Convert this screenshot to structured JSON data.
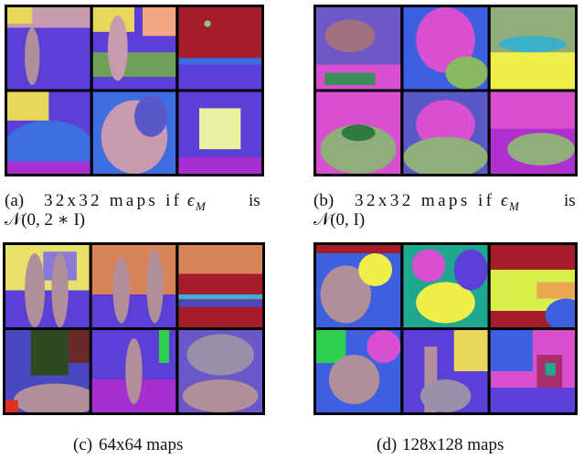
{
  "figures": [
    {
      "label": "(a)",
      "text": "32x32 maps if",
      "symbol": "ϵ",
      "subscript": "M",
      "suffix": "is",
      "distribution": "𝒩(0, 2 ∗ I)"
    },
    {
      "label": "(b)",
      "text": "32x32 maps if",
      "symbol": "ϵ",
      "subscript": "M",
      "suffix": "is",
      "distribution": "𝒩(0, I)"
    },
    {
      "label": "(c)",
      "text": "64x64 maps"
    },
    {
      "label": "(d)",
      "text": "128x128 maps"
    }
  ]
}
